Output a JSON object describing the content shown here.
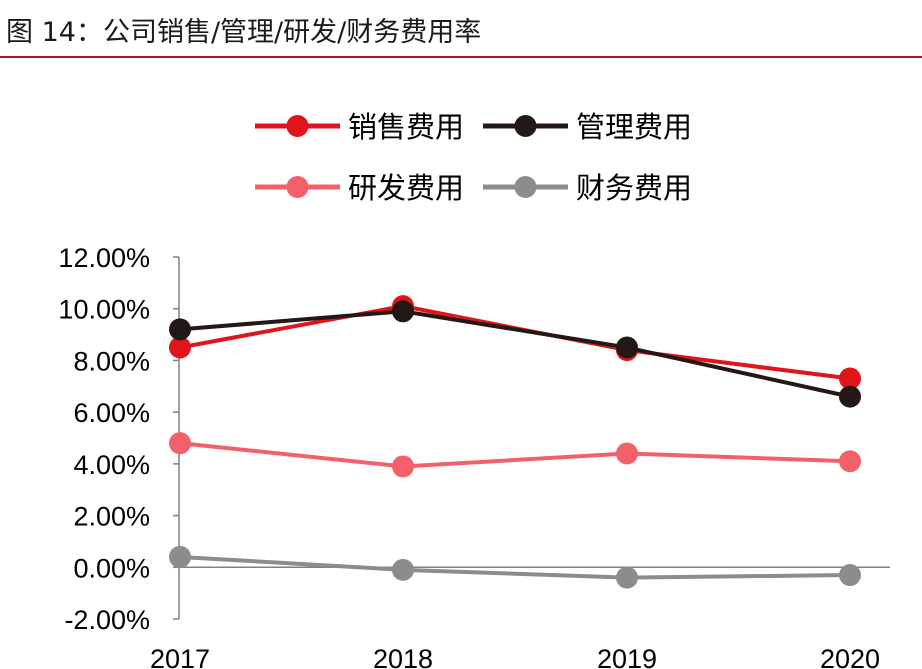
{
  "figure_title": "图 14：公司销售/管理/研发/财务费用率",
  "colors": {
    "title_rule": "#b2131b",
    "axis": "#808080"
  },
  "chart_data": {
    "type": "line",
    "title": "",
    "xlabel": "",
    "ylabel": "",
    "x": [
      "2017",
      "2018",
      "2019",
      "2020"
    ],
    "ylim": [
      -0.02,
      0.12
    ],
    "y_ticks": [
      -0.02,
      0.0,
      0.02,
      0.04,
      0.06,
      0.08,
      0.1,
      0.12
    ],
    "y_tick_labels": [
      "-2.00%",
      "0.00%",
      "2.00%",
      "4.00%",
      "6.00%",
      "8.00%",
      "10.00%",
      "12.00%"
    ],
    "grid": false,
    "legend_position": "top",
    "series": [
      {
        "name": "销售费用",
        "color": "#e0151b",
        "values": [
          0.085,
          0.101,
          0.084,
          0.073
        ]
      },
      {
        "name": "管理费用",
        "color": "#231815",
        "values": [
          0.092,
          0.099,
          0.085,
          0.066
        ]
      },
      {
        "name": "研发费用",
        "color": "#f2616a",
        "values": [
          0.048,
          0.039,
          0.044,
          0.041
        ]
      },
      {
        "name": "财务费用",
        "color": "#8c8c8c",
        "values": [
          0.004,
          -0.001,
          -0.004,
          -0.003
        ]
      }
    ]
  }
}
